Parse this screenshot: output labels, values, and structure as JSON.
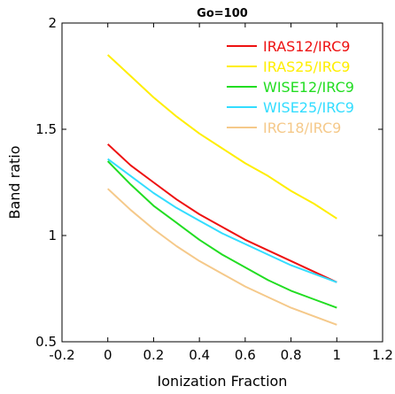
{
  "chart_data": {
    "type": "line",
    "title": "Go=100",
    "xlabel": "Ionization Fraction",
    "ylabel": "Band ratio",
    "xlim": [
      -0.2,
      1.2
    ],
    "ylim": [
      0.5,
      2
    ],
    "xticks": [
      -0.2,
      0,
      0.2,
      0.4,
      0.6,
      0.8,
      1,
      1.2
    ],
    "xtick_labels": [
      "-0.2",
      "0",
      "0.2",
      "0.4",
      "0.6",
      "0.8",
      "1",
      "1.2"
    ],
    "yticks": [
      0.5,
      1,
      1.5,
      2
    ],
    "ytick_labels": [
      "0.5",
      "1",
      "1.5",
      "2"
    ],
    "grid": false,
    "legend_position": "top-right",
    "x": [
      0,
      0.1,
      0.2,
      0.3,
      0.4,
      0.5,
      0.6,
      0.7,
      0.8,
      0.9,
      1
    ],
    "series": [
      {
        "name": "IRAS12/IRC9",
        "color": "#ee1111",
        "values": [
          1.43,
          1.33,
          1.25,
          1.17,
          1.1,
          1.04,
          0.98,
          0.93,
          0.88,
          0.83,
          0.78
        ]
      },
      {
        "name": "IRAS25/IRC9",
        "color": "#ffee00",
        "values": [
          1.85,
          1.75,
          1.65,
          1.56,
          1.48,
          1.41,
          1.34,
          1.28,
          1.21,
          1.15,
          1.08
        ]
      },
      {
        "name": "WISE12/IRC9",
        "color": "#22dd22",
        "values": [
          1.35,
          1.24,
          1.14,
          1.06,
          0.98,
          0.91,
          0.85,
          0.79,
          0.74,
          0.7,
          0.66
        ]
      },
      {
        "name": "WISE25/IRC9",
        "color": "#33ddff",
        "values": [
          1.36,
          1.28,
          1.2,
          1.13,
          1.07,
          1.01,
          0.96,
          0.91,
          0.86,
          0.82,
          0.78
        ]
      },
      {
        "name": "IRC18/IRC9",
        "color": "#f5c98a",
        "values": [
          1.22,
          1.12,
          1.03,
          0.95,
          0.88,
          0.82,
          0.76,
          0.71,
          0.66,
          0.62,
          0.58
        ]
      }
    ]
  }
}
